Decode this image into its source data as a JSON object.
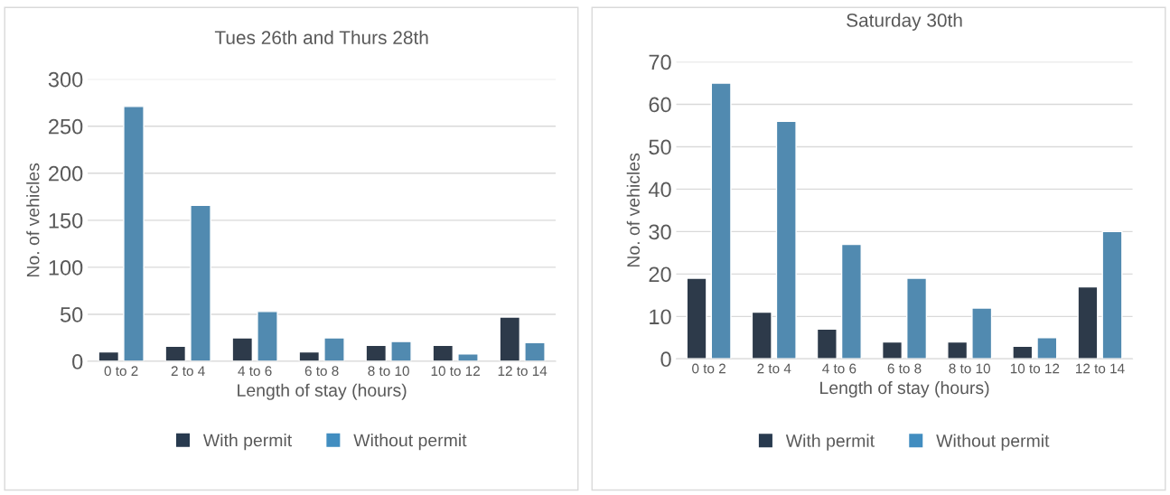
{
  "chart_data": [
    {
      "type": "bar",
      "title": "Tues 26th and Thurs 28th",
      "xlabel": "Length of stay (hours)",
      "ylabel": "No. of vehicles",
      "categories": [
        "0 to 2",
        "2 to 4",
        "4 to 6",
        "6 to 8",
        "8 to 10",
        "10 to 12",
        "12 to 14"
      ],
      "series": [
        {
          "name": "With permit",
          "color": "#283a4f",
          "values": [
            10,
            16,
            25,
            10,
            17,
            17,
            47
          ]
        },
        {
          "name": "Without permit",
          "color": "#418dc0",
          "values": [
            271,
            166,
            53,
            25,
            21,
            8,
            20
          ]
        }
      ],
      "ylim": [
        0,
        300
      ],
      "yticks": [
        0,
        50,
        100,
        150,
        200,
        250,
        300
      ],
      "grid": "y",
      "legend": "bottom"
    },
    {
      "type": "bar",
      "title": "Saturday 30th",
      "xlabel": "Length of stay (hours)",
      "ylabel": "No. of vehicles",
      "categories": [
        "0 to 2",
        "2 to 4",
        "4 to 6",
        "6 to 8",
        "8 to 10",
        "10 to 12",
        "12 to 14"
      ],
      "series": [
        {
          "name": "With permit",
          "color": "#283a4f",
          "values": [
            19,
            11,
            7,
            4,
            4,
            3,
            17
          ]
        },
        {
          "name": "Without permit",
          "color": "#418dc0",
          "values": [
            65,
            56,
            27,
            19,
            12,
            5,
            30
          ]
        }
      ],
      "ylim": [
        0,
        70
      ],
      "yticks": [
        0,
        10,
        20,
        30,
        40,
        50,
        60,
        70
      ],
      "grid": "y",
      "legend": "bottom"
    }
  ]
}
